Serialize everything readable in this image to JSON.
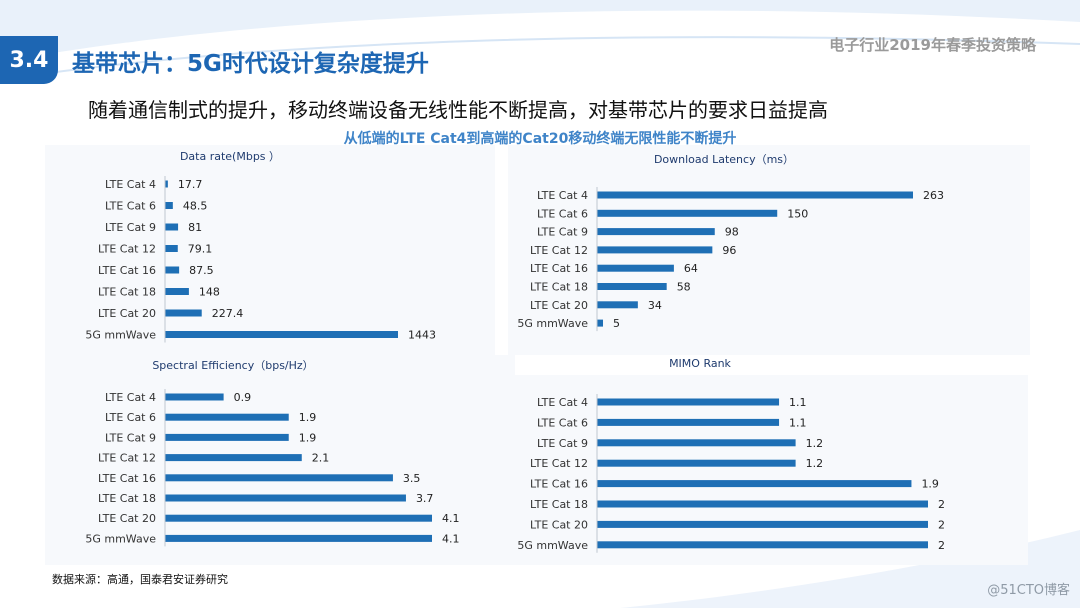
{
  "header": {
    "section_number": "3.4",
    "title": "基带芯片：5G时代设计复杂度提升",
    "report_title": "电子行业2019年春季投资策略"
  },
  "headline": "随着通信制式的提升，移动终端设备无线性能不断提高，对基带芯片的要求日益提高",
  "subtitle": "从低端的LTE Cat4到高端的Cat20移动终端无限性能不断提升",
  "chart_data": [
    {
      "type": "bar",
      "orientation": "horizontal",
      "title": "Data rate(Mbps ）",
      "categories": [
        "LTE Cat 4",
        "LTE Cat 6",
        "LTE Cat 9",
        "LTE Cat 12",
        "LTE Cat 16",
        "LTE Cat 18",
        "LTE Cat 20",
        "5G mmWave"
      ],
      "values": [
        17.7,
        48.5,
        81,
        79.1,
        87.5,
        148,
        227.4,
        1443
      ],
      "labels": [
        "17.7",
        "48.5",
        "81",
        "79.1",
        "87.5",
        "148",
        "227.4",
        "1443"
      ],
      "xlim": [
        0,
        1443
      ],
      "grid": false,
      "color": "#1e6fb5"
    },
    {
      "type": "bar",
      "orientation": "horizontal",
      "title": "Download Latency（ms）",
      "categories": [
        "LTE Cat 4",
        "LTE Cat 6",
        "LTE Cat 9",
        "LTE Cat 12",
        "LTE Cat 16",
        "LTE Cat 18",
        "LTE Cat 20",
        "5G mmWave"
      ],
      "values": [
        263,
        150,
        98,
        96,
        64,
        58,
        34,
        5
      ],
      "labels": [
        "263",
        "150",
        "98",
        "96",
        "64",
        "58",
        "34",
        "5"
      ],
      "xlim": [
        0,
        263
      ],
      "grid": false,
      "color": "#1e6fb5"
    },
    {
      "type": "bar",
      "orientation": "horizontal",
      "title": "Spectral Efficiency（bps/Hz）",
      "categories": [
        "LTE Cat 4",
        "LTE Cat 6",
        "LTE Cat 9",
        "LTE Cat 12",
        "LTE Cat 16",
        "LTE Cat 18",
        "LTE Cat 20",
        "5G mmWave"
      ],
      "values": [
        0.9,
        1.9,
        1.9,
        2.1,
        3.5,
        3.7,
        4.1,
        4.1
      ],
      "labels": [
        "0.9",
        "1.9",
        "1.9",
        "2.1",
        "3.5",
        "3.7",
        "4.1",
        "4.1"
      ],
      "xlim": [
        0,
        4.1
      ],
      "grid": false,
      "color": "#1e6fb5"
    },
    {
      "type": "bar",
      "orientation": "horizontal",
      "title": "MIMO Rank",
      "categories": [
        "LTE Cat 4",
        "LTE Cat 6",
        "LTE Cat 9",
        "LTE Cat 12",
        "LTE Cat 16",
        "LTE Cat 18",
        "LTE Cat 20",
        "5G mmWave"
      ],
      "values": [
        1.1,
        1.1,
        1.2,
        1.2,
        1.9,
        2,
        2,
        2
      ],
      "labels": [
        "1.1",
        "1.1",
        "1.2",
        "1.2",
        "1.9",
        "2",
        "2",
        "2"
      ],
      "xlim": [
        0,
        2
      ],
      "grid": false,
      "color": "#1e6fb5"
    }
  ],
  "footer": {
    "source": "数据来源：高通，国泰君安证券研究",
    "watermark": "@51CTO博客"
  },
  "colors": {
    "brand_blue": "#1d66b3",
    "bar_blue": "#1e6fb5",
    "subtitle_blue": "#3f84c8"
  }
}
